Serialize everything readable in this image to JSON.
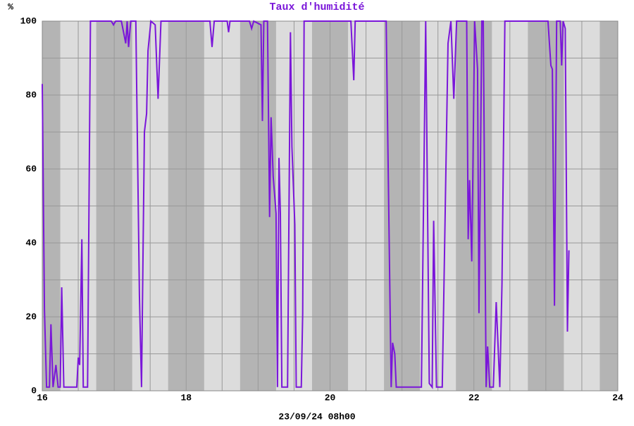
{
  "chart_data": {
    "type": "line",
    "title": "Taux d'humidité",
    "y_label": "%",
    "x_label": "23/09/24 08h00",
    "xlim": [
      16,
      24
    ],
    "xticks": [
      16,
      18,
      20,
      22,
      24
    ],
    "ylim": [
      0,
      100
    ],
    "yticks": [
      0,
      20,
      40,
      60,
      80,
      100
    ],
    "grid": true,
    "series": [
      {
        "name": "Humidité",
        "color": "#7a16d9",
        "x": [
          16.0,
          16.03,
          16.06,
          16.1,
          16.12,
          16.15,
          16.19,
          16.22,
          16.25,
          16.27,
          16.3,
          16.48,
          16.5,
          16.52,
          16.55,
          16.57,
          16.63,
          16.67,
          16.96,
          16.99,
          17.02,
          17.1,
          17.13,
          17.16,
          17.18,
          17.2,
          17.23,
          17.3,
          17.35,
          17.38,
          17.42,
          17.45,
          17.47,
          17.51,
          17.57,
          17.61,
          17.65,
          18.33,
          18.36,
          18.39,
          18.57,
          18.59,
          18.61,
          18.88,
          18.91,
          18.94,
          19.04,
          19.06,
          19.08,
          19.13,
          19.16,
          19.18,
          19.21,
          19.25,
          19.27,
          19.29,
          19.31,
          19.33,
          19.41,
          19.45,
          19.47,
          19.51,
          19.53,
          19.6,
          19.62,
          19.64,
          20.29,
          20.33,
          20.35,
          20.78,
          20.85,
          20.87,
          20.9,
          20.92,
          21.27,
          21.33,
          21.38,
          21.42,
          21.44,
          21.48,
          21.56,
          21.64,
          21.68,
          21.72,
          21.76,
          21.9,
          21.92,
          21.94,
          21.97,
          22.01,
          22.05,
          22.07,
          22.11,
          22.13,
          22.17,
          22.19,
          22.22,
          22.27,
          22.31,
          22.36,
          22.39,
          22.43,
          23.03,
          23.07,
          23.09,
          23.12,
          23.15,
          23.2,
          23.22,
          23.24,
          23.27,
          23.3,
          23.32
        ],
        "values": [
          83,
          22,
          1,
          1,
          18,
          1,
          7,
          1,
          1,
          28,
          1,
          1,
          9,
          7,
          41,
          1,
          1,
          100,
          100,
          99,
          100,
          100,
          97,
          94,
          100,
          93,
          100,
          100,
          26,
          1,
          70,
          75,
          92,
          100,
          99,
          79,
          100,
          100,
          93,
          100,
          100,
          97,
          100,
          100,
          98,
          100,
          99,
          73,
          100,
          100,
          47,
          74,
          58,
          48,
          1,
          63,
          48,
          1,
          1,
          97,
          66,
          45,
          1,
          1,
          21,
          100,
          100,
          84,
          100,
          100,
          1,
          13,
          10,
          1,
          1,
          100,
          2,
          1,
          46,
          1,
          1,
          94,
          100,
          79,
          100,
          100,
          41,
          57,
          35,
          100,
          87,
          21,
          100,
          100,
          1,
          12,
          1,
          1,
          24,
          1,
          29,
          100,
          100,
          88,
          87,
          23,
          100,
          100,
          88,
          100,
          98,
          16,
          38
        ]
      }
    ]
  }
}
